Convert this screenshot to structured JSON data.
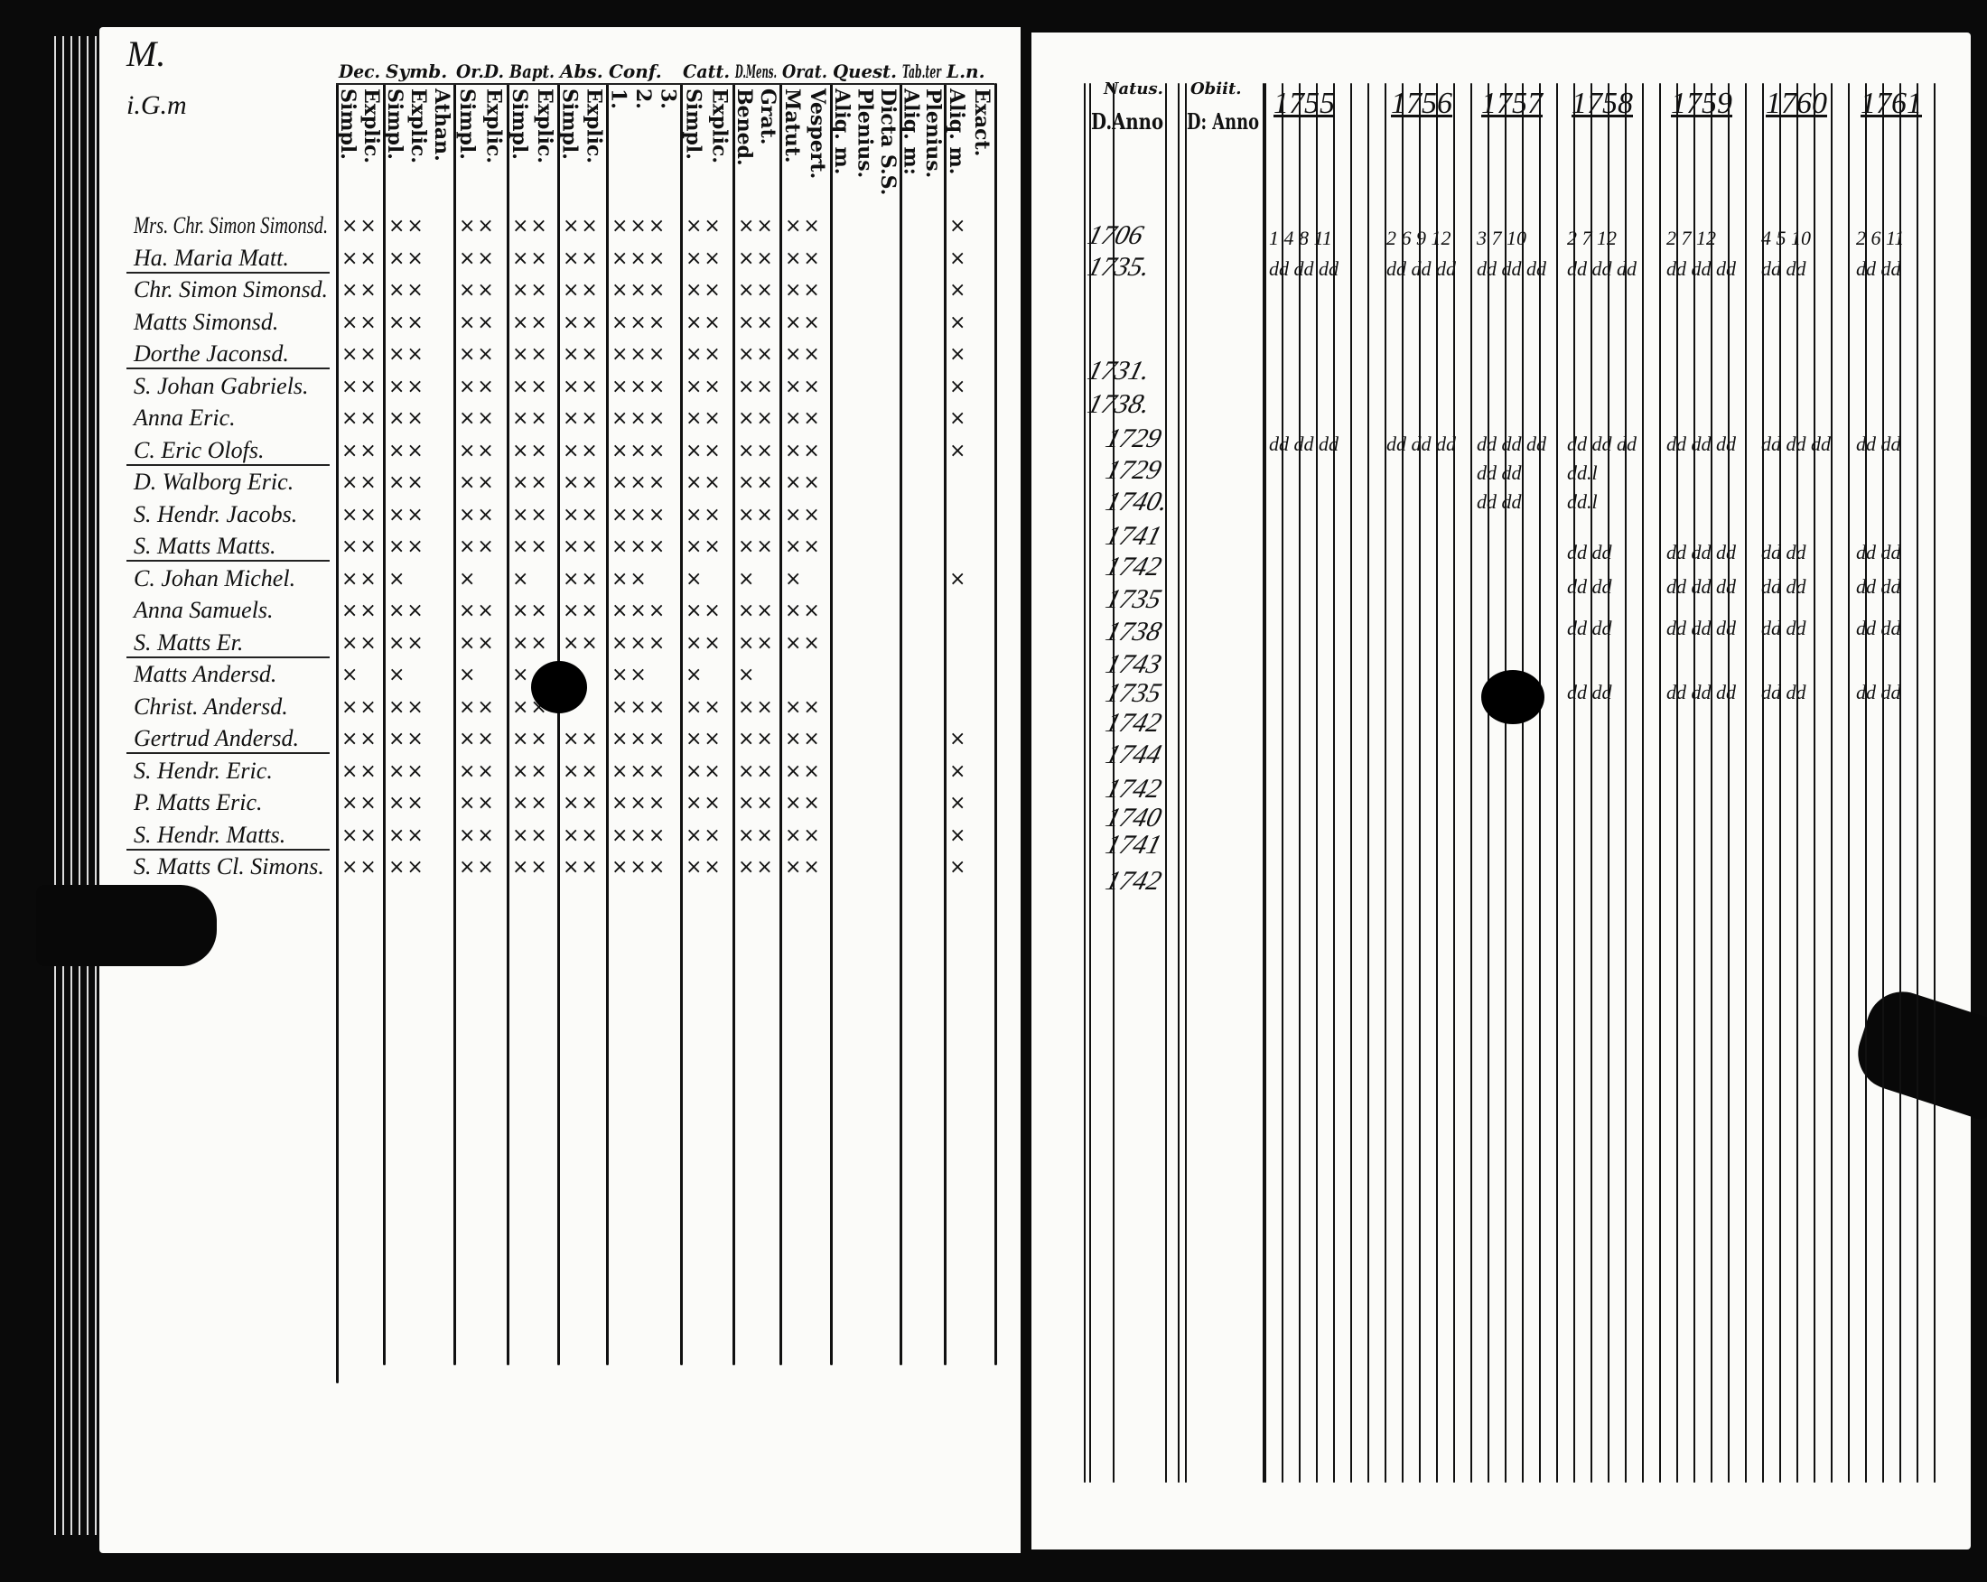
{
  "left_page": {
    "corner_mark": "M.",
    "name_header": "i.G.m",
    "column_groups": [
      {
        "label": "Dec.",
        "subs": [
          "Simpl.",
          "Explic."
        ]
      },
      {
        "label": "Symb.",
        "subs": [
          "Simpl.",
          "Explic.",
          "Athan."
        ]
      },
      {
        "label": "Or.D.",
        "subs": [
          "Simpl.",
          "Explic."
        ]
      },
      {
        "label": "Bapt.",
        "subs": [
          "Simpl.",
          "Explic."
        ]
      },
      {
        "label": "Abs.",
        "subs": [
          "Simpl.",
          "Explic."
        ]
      },
      {
        "label": "Conf.",
        "subs": [
          "1.",
          "2.",
          "3."
        ]
      },
      {
        "label": "Catt.",
        "subs": [
          "Simpl.",
          "Explic."
        ]
      },
      {
        "label": "D.Mens.",
        "subs": [
          "Bened.",
          "Grat."
        ]
      },
      {
        "label": "Orat.",
        "subs": [
          "Matut.",
          "Vespert."
        ]
      },
      {
        "label": "Quest.",
        "subs": [
          "Aliq. m.",
          "Plenius.",
          "Dicta S.S."
        ]
      },
      {
        "label": "Tab.ter",
        "subs": [
          "Aliq. m:",
          "Plenius."
        ]
      },
      {
        "label": "L.n.",
        "subs": [
          "Aliq. m.",
          "Exact."
        ]
      }
    ],
    "rows": [
      {
        "name": "Mrs. Chr. Simon Simonsd.",
        "marks": [
          "××",
          "××",
          "××",
          "××",
          "××",
          "×××",
          "××",
          "××",
          "××",
          "",
          "",
          "×"
        ]
      },
      {
        "name": "Ha. Maria Matt.",
        "marks": [
          "××",
          "××",
          "××",
          "××",
          "××",
          "×××",
          "××",
          "××",
          "××",
          "",
          "",
          "×"
        ]
      },
      {
        "name": "Chr. Simon Simonsd.",
        "marks": [
          "××",
          "××",
          "××",
          "××",
          "××",
          "×××",
          "××",
          "××",
          "××",
          "",
          "",
          "×"
        ]
      },
      {
        "name": "Matts Simonsd.",
        "marks": [
          "××",
          "××",
          "××",
          "××",
          "××",
          "×××",
          "××",
          "××",
          "××",
          "",
          "",
          "×"
        ]
      },
      {
        "name": "Dorthe Jaconsd.",
        "marks": [
          "××",
          "××",
          "××",
          "××",
          "××",
          "×××",
          "××",
          "××",
          "××",
          "",
          "",
          "×"
        ]
      },
      {
        "name": "S. Johan Gabriels.",
        "marks": [
          "××",
          "××",
          "××",
          "××",
          "××",
          "×××",
          "××",
          "××",
          "××",
          "",
          "",
          "×"
        ]
      },
      {
        "name": "Anna Eric.",
        "marks": [
          "××",
          "××",
          "××",
          "××",
          "××",
          "×××",
          "××",
          "××",
          "××",
          "",
          "",
          "×"
        ]
      },
      {
        "name": "C. Eric Olofs.",
        "marks": [
          "××",
          "××",
          "××",
          "××",
          "××",
          "×××",
          "××",
          "××",
          "××",
          "",
          "",
          "×"
        ]
      },
      {
        "name": "D. Walborg Eric.",
        "marks": [
          "××",
          "××",
          "××",
          "××",
          "××",
          "×××",
          "××",
          "××",
          "××",
          "",
          "",
          ""
        ]
      },
      {
        "name": "S. Hendr. Jacobs.",
        "marks": [
          "××",
          "××",
          "××",
          "××",
          "××",
          "×××",
          "××",
          "××",
          "××",
          "",
          "",
          ""
        ]
      },
      {
        "name": "S. Matts Matts.",
        "marks": [
          "××",
          "××",
          "××",
          "××",
          "××",
          "×××",
          "××",
          "××",
          "××",
          "",
          "",
          ""
        ]
      },
      {
        "name": "C. Johan Michel.",
        "marks": [
          "××",
          "×",
          "×",
          "×",
          "××",
          "××",
          "×",
          "×",
          "×",
          "",
          "",
          "×"
        ]
      },
      {
        "name": "Anna Samuels.",
        "marks": [
          "××",
          "××",
          "××",
          "××",
          "××",
          "×××",
          "××",
          "××",
          "××",
          "",
          "",
          ""
        ]
      },
      {
        "name": "S. Matts Er.",
        "marks": [
          "××",
          "××",
          "××",
          "××",
          "××",
          "×××",
          "××",
          "××",
          "××",
          "",
          "",
          ""
        ]
      },
      {
        "name": "Matts Andersd.",
        "marks": [
          "×",
          "×",
          "×",
          "×",
          "",
          "××",
          "×",
          "×",
          "",
          "",
          "",
          ""
        ]
      },
      {
        "name": "Christ. Andersd.",
        "marks": [
          "××",
          "××",
          "××",
          "××",
          "",
          "×××",
          "××",
          "××",
          "××",
          "",
          "",
          ""
        ]
      },
      {
        "name": "Gertrud Andersd.",
        "marks": [
          "××",
          "××",
          "××",
          "××",
          "××",
          "×××",
          "××",
          "××",
          "××",
          "",
          "",
          "×"
        ]
      },
      {
        "name": "S. Hendr. Eric.",
        "marks": [
          "××",
          "××",
          "××",
          "××",
          "××",
          "×××",
          "××",
          "××",
          "××",
          "",
          "",
          "×"
        ]
      },
      {
        "name": "P. Matts Eric.",
        "marks": [
          "××",
          "××",
          "××",
          "××",
          "××",
          "×××",
          "××",
          "××",
          "××",
          "",
          "",
          "×"
        ]
      },
      {
        "name": "S. Hendr. Matts.",
        "marks": [
          "××",
          "××",
          "××",
          "××",
          "××",
          "×××",
          "××",
          "××",
          "××",
          "",
          "",
          "×"
        ]
      },
      {
        "name": "S. Matts Cl. Simons.",
        "marks": [
          "××",
          "××",
          "××",
          "××",
          "××",
          "×××",
          "××",
          "××",
          "××",
          "",
          "",
          "×"
        ]
      }
    ]
  },
  "right_page": {
    "natus_header": "Natus.",
    "natus_sub": "D.Anno",
    "obiit_header": "Obiit.",
    "obiit_sub": "D: Anno",
    "year_headers": [
      "1755",
      "1756",
      "1757",
      "1758",
      "1759",
      "1760",
      "1761"
    ],
    "natus_years": [
      "1706",
      "1735.",
      "",
      "1731.",
      "1738.",
      "1729",
      "1729",
      "1740.",
      "1741",
      "1742",
      "1735",
      "1738",
      "1743",
      "1735",
      "1742",
      "1744",
      "1742",
      "1740",
      "1741",
      "1742"
    ],
    "row_entries": [
      {
        "row": 0,
        "cells": [
          "1 4 8 11",
          "2 6 9 12",
          "3 7 10",
          "2 7 12",
          "2 7 12",
          "4 5 10",
          "2 6 11"
        ]
      },
      {
        "row": 1,
        "cells": [
          "dd dd dd",
          "dd dd dd",
          "dd dd dd",
          "dd dd dd",
          "dd dd dd",
          "dd dd",
          "dd dd"
        ]
      },
      {
        "row": 6,
        "cells": [
          "dd dd dd",
          "dd dd dd",
          "dd dd dd",
          "dd dd dd",
          "dd dd dd",
          "dd dd dd",
          "dd dd"
        ]
      },
      {
        "row": 7,
        "cells": [
          "",
          "",
          "dd dd",
          "dd.l",
          "",
          "",
          ""
        ]
      },
      {
        "row": 8,
        "cells": [
          "",
          "",
          "dd dd",
          "dd.l",
          "",
          "",
          ""
        ]
      },
      {
        "row": 9,
        "cells": [
          "",
          "",
          "",
          "dd dd",
          "dd dd dd",
          "dd dd",
          "dd dd"
        ]
      },
      {
        "row": 10,
        "cells": [
          "",
          "",
          "",
          "dd dd",
          "dd dd dd",
          "dd dd",
          "dd dd"
        ]
      },
      {
        "row": 11,
        "cells": [
          "",
          "",
          "",
          "dd dd",
          "dd dd dd",
          "dd dd",
          "dd dd"
        ]
      },
      {
        "row": 13,
        "cells": [
          "",
          "",
          "",
          "dd dd",
          "dd dd dd",
          "dd dd",
          "dd dd"
        ]
      }
    ]
  }
}
